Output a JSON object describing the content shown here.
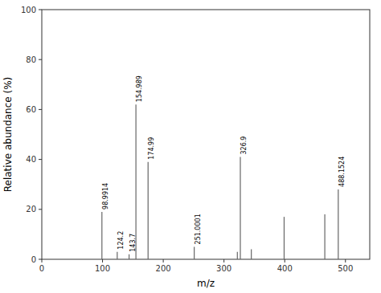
{
  "chart_data": {
    "type": "stem",
    "x": [
      98.9914,
      124.2,
      143.7,
      154.989,
      174.99,
      251.0001,
      322.0,
      326.9,
      345.0,
      399.0,
      466.0,
      488.1524
    ],
    "values": [
      19,
      3,
      2,
      62,
      39,
      5,
      3,
      41,
      4,
      17,
      18,
      28
    ],
    "annotations": [
      "98.9914",
      "124.2",
      "143.7",
      "154.989",
      "174.99",
      "251.0001",
      null,
      "326.9",
      null,
      null,
      null,
      "488.1524"
    ],
    "xlim": [
      0,
      540
    ],
    "ylim": [
      0,
      100
    ],
    "xticks": [
      0,
      100,
      200,
      300,
      400,
      500
    ],
    "yticks": [
      0,
      20,
      40,
      60,
      80,
      100
    ],
    "xlabel": "m/z",
    "ylabel": "Relative abundance (%)",
    "color": "#666666",
    "grid": false
  }
}
